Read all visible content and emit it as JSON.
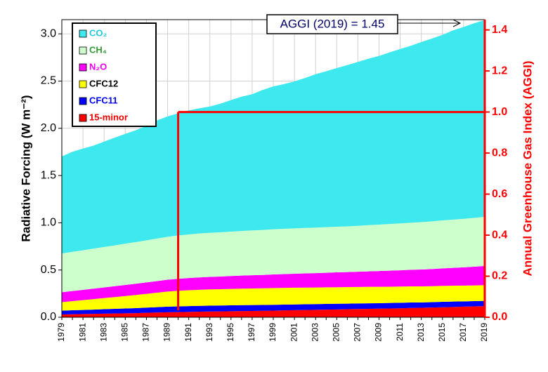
{
  "chart_data": {
    "type": "stacked_area",
    "ylabel": "Radiative Forcing (W m⁻²)",
    "y2label": "Annual Greenhouse Gas Index (AGGI)",
    "annotation": "AGGI (2019) = 1.45",
    "x": [
      1979,
      1980,
      1981,
      1982,
      1983,
      1984,
      1985,
      1986,
      1987,
      1988,
      1989,
      1990,
      1991,
      1992,
      1993,
      1994,
      1995,
      1996,
      1997,
      1998,
      1999,
      2000,
      2001,
      2002,
      2003,
      2004,
      2005,
      2006,
      2007,
      2008,
      2009,
      2010,
      2011,
      2012,
      2013,
      2014,
      2015,
      2016,
      2017,
      2018,
      2019
    ],
    "xlim": [
      1979,
      2019
    ],
    "xticks": [
      1979,
      1981,
      1983,
      1985,
      1987,
      1989,
      1991,
      1993,
      1995,
      1997,
      1999,
      2001,
      2003,
      2005,
      2007,
      2009,
      2011,
      2013,
      2015,
      2017,
      2019
    ],
    "ylim": [
      0,
      3.15
    ],
    "yticks": [
      {
        "value": 0,
        "label": "0.0"
      },
      {
        "value": 0.5,
        "label": "0.5"
      },
      {
        "value": 1,
        "label": "1.0"
      },
      {
        "value": 1.5,
        "label": "1.5"
      },
      {
        "value": 2,
        "label": "2.0"
      },
      {
        "value": 2.5,
        "label": "2.5"
      },
      {
        "value": 3,
        "label": "3.0"
      }
    ],
    "y2lim": [
      0,
      1.45
    ],
    "y2ticks": [
      {
        "value": 0,
        "label": "0.0"
      },
      {
        "value": 0.2,
        "label": "0.2"
      },
      {
        "value": 0.4,
        "label": "0.4"
      },
      {
        "value": 0.6,
        "label": "0.6"
      },
      {
        "value": 0.8,
        "label": "0.8"
      },
      {
        "value": 1,
        "label": "1.0"
      },
      {
        "value": 1.2,
        "label": "1.2"
      },
      {
        "value": 1.4,
        "label": "1.4"
      }
    ],
    "reference": {
      "x": 1990,
      "y2": 1.0,
      "color": "#ff0000"
    },
    "y2color": "#ff0000",
    "series": [
      {
        "name": "CO₂",
        "color": "#3de8ee",
        "text_color": "#22ccdd",
        "values": [
          1.027,
          1.058,
          1.077,
          1.089,
          1.115,
          1.14,
          1.162,
          1.184,
          1.211,
          1.25,
          1.274,
          1.293,
          1.313,
          1.324,
          1.337,
          1.361,
          1.392,
          1.422,
          1.442,
          1.482,
          1.512,
          1.531,
          1.555,
          1.587,
          1.623,
          1.65,
          1.679,
          1.707,
          1.734,
          1.762,
          1.785,
          1.817,
          1.845,
          1.872,
          1.906,
          1.934,
          1.964,
          2.003,
          2.031,
          2.06,
          2.083
        ]
      },
      {
        "name": "CH₄",
        "color": "#ccffcc",
        "text_color": "#339933",
        "values": [
          0.41,
          0.415,
          0.419,
          0.424,
          0.428,
          0.432,
          0.437,
          0.441,
          0.445,
          0.45,
          0.455,
          0.459,
          0.462,
          0.465,
          0.467,
          0.468,
          0.47,
          0.472,
          0.474,
          0.476,
          0.478,
          0.479,
          0.48,
          0.481,
          0.482,
          0.483,
          0.483,
          0.484,
          0.486,
          0.489,
          0.492,
          0.494,
          0.497,
          0.499,
          0.502,
          0.505,
          0.508,
          0.511,
          0.514,
          0.517,
          0.52
        ]
      },
      {
        "name": "N₂O",
        "color": "#ff00ff",
        "text_color": "#ee00ee",
        "values": [
          0.105,
          0.107,
          0.109,
          0.111,
          0.113,
          0.115,
          0.117,
          0.119,
          0.121,
          0.123,
          0.125,
          0.127,
          0.129,
          0.131,
          0.132,
          0.134,
          0.136,
          0.138,
          0.14,
          0.142,
          0.144,
          0.146,
          0.148,
          0.15,
          0.152,
          0.154,
          0.157,
          0.159,
          0.162,
          0.164,
          0.167,
          0.17,
          0.172,
          0.175,
          0.178,
          0.181,
          0.185,
          0.189,
          0.193,
          0.198,
          0.203
        ]
      },
      {
        "name": "CFC12",
        "color": "#ffff00",
        "text_color": "#000000",
        "values": [
          0.09,
          0.097,
          0.104,
          0.111,
          0.118,
          0.125,
          0.132,
          0.139,
          0.146,
          0.153,
          0.16,
          0.165,
          0.168,
          0.17,
          0.172,
          0.173,
          0.174,
          0.175,
          0.176,
          0.176,
          0.177,
          0.177,
          0.177,
          0.177,
          0.176,
          0.176,
          0.175,
          0.175,
          0.174,
          0.174,
          0.173,
          0.172,
          0.172,
          0.171,
          0.17,
          0.169,
          0.169,
          0.168,
          0.167,
          0.166,
          0.166
        ]
      },
      {
        "name": "CFC11",
        "color": "#0000ff",
        "text_color": "#0000ee",
        "values": [
          0.04,
          0.042,
          0.043,
          0.045,
          0.047,
          0.049,
          0.051,
          0.053,
          0.055,
          0.057,
          0.059,
          0.06,
          0.061,
          0.062,
          0.062,
          0.062,
          0.062,
          0.062,
          0.062,
          0.061,
          0.061,
          0.061,
          0.061,
          0.06,
          0.06,
          0.06,
          0.06,
          0.059,
          0.059,
          0.059,
          0.058,
          0.058,
          0.058,
          0.058,
          0.057,
          0.057,
          0.057,
          0.057,
          0.056,
          0.056,
          0.056
        ]
      },
      {
        "name": "15-minor",
        "color": "#ff0000",
        "text_color": "#ee0000",
        "values": [
          0.03,
          0.032,
          0.034,
          0.036,
          0.038,
          0.04,
          0.042,
          0.044,
          0.047,
          0.05,
          0.053,
          0.055,
          0.057,
          0.059,
          0.061,
          0.062,
          0.064,
          0.066,
          0.067,
          0.069,
          0.071,
          0.073,
          0.075,
          0.077,
          0.079,
          0.081,
          0.083,
          0.085,
          0.087,
          0.089,
          0.091,
          0.093,
          0.095,
          0.098,
          0.1,
          0.103,
          0.106,
          0.109,
          0.112,
          0.115,
          0.118
        ]
      }
    ],
    "grid": true
  }
}
